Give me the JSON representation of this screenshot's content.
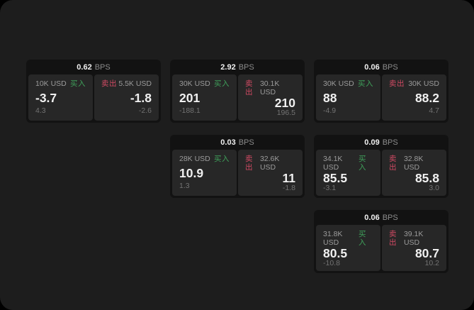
{
  "theme": {
    "bg_outer": "#000000",
    "bg_container": "#1d1d1d",
    "bg_card": "#121212",
    "bg_panel": "#272727",
    "text_bright": "#f0f0f0",
    "text_label": "#9b9b9b",
    "text_dim": "#8c8c8c",
    "text_sub": "#737373",
    "accent_buy": "#3fa05a",
    "accent_sell": "#d04a63"
  },
  "labels": {
    "bps": "BPS",
    "buy": "买入",
    "sell": "卖出"
  },
  "cards": [
    {
      "col": 1,
      "row": 1,
      "bps": "0.62",
      "buy": {
        "amount": "10K USD",
        "value": "-3.7",
        "sub": "4.3"
      },
      "sell": {
        "amount": "5.5K USD",
        "value": "-1.8",
        "sub": "-2.6"
      }
    },
    {
      "col": 2,
      "row": 1,
      "bps": "2.92",
      "buy": {
        "amount": "30K USD",
        "value": "201",
        "sub": "-188.1"
      },
      "sell": {
        "amount": "30.1K USD",
        "value": "210",
        "sub": "196.5"
      }
    },
    {
      "col": 3,
      "row": 1,
      "bps": "0.06",
      "buy": {
        "amount": "30K USD",
        "value": "88",
        "sub": "-4.9"
      },
      "sell": {
        "amount": "30K USD",
        "value": "88.2",
        "sub": "4.7"
      }
    },
    {
      "col": 2,
      "row": 2,
      "bps": "0.03",
      "buy": {
        "amount": "28K USD",
        "value": "10.9",
        "sub": "1.3"
      },
      "sell": {
        "amount": "32.6K USD",
        "value": "11",
        "sub": "-1.8"
      }
    },
    {
      "col": 3,
      "row": 2,
      "bps": "0.09",
      "buy": {
        "amount": "34.1K USD",
        "value": "85.5",
        "sub": "-3.1"
      },
      "sell": {
        "amount": "32.8K USD",
        "value": "85.8",
        "sub": "3.0"
      }
    },
    {
      "col": 3,
      "row": 3,
      "bps": "0.06",
      "buy": {
        "amount": "31.8K USD",
        "value": "80.5",
        "sub": "-10.8"
      },
      "sell": {
        "amount": "39.1K USD",
        "value": "80.7",
        "sub": "10.2"
      }
    }
  ]
}
